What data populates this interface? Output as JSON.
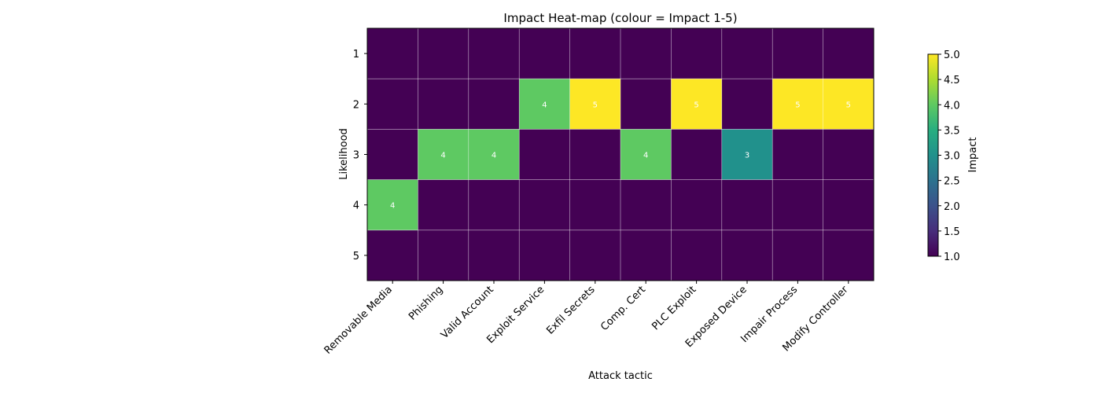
{
  "chart_data": {
    "type": "heatmap",
    "title": "Impact Heat-map (colour = Impact 1-5)",
    "xlabel": "Attack tactic",
    "ylabel": "Likelihood",
    "x_categories": [
      "Removable Media",
      "Phishing",
      "Valid Account",
      "Exploit Service",
      "Exfil Secrets",
      "Comp. Cert",
      "PLC Exploit",
      "Exposed Device",
      "Impair Process",
      "Modify Controller"
    ],
    "y_categories": [
      "1",
      "2",
      "3",
      "4",
      "5"
    ],
    "values": [
      [
        1,
        1,
        1,
        1,
        1,
        1,
        1,
        1,
        1,
        1
      ],
      [
        1,
        1,
        1,
        4,
        5,
        1,
        5,
        1,
        5,
        5
      ],
      [
        1,
        4,
        4,
        1,
        1,
        4,
        1,
        3,
        1,
        1
      ],
      [
        4,
        1,
        1,
        1,
        1,
        1,
        1,
        1,
        1,
        1
      ],
      [
        1,
        1,
        1,
        1,
        1,
        1,
        1,
        1,
        1,
        1
      ]
    ],
    "annotations": [
      {
        "row": 1,
        "col": 3,
        "text": "4"
      },
      {
        "row": 1,
        "col": 4,
        "text": "5"
      },
      {
        "row": 1,
        "col": 6,
        "text": "5"
      },
      {
        "row": 1,
        "col": 8,
        "text": "5"
      },
      {
        "row": 1,
        "col": 9,
        "text": "5"
      },
      {
        "row": 2,
        "col": 1,
        "text": "4"
      },
      {
        "row": 2,
        "col": 2,
        "text": "4"
      },
      {
        "row": 2,
        "col": 5,
        "text": "4"
      },
      {
        "row": 2,
        "col": 7,
        "text": "3"
      },
      {
        "row": 3,
        "col": 0,
        "text": "4"
      }
    ],
    "colorbar": {
      "label": "Impact",
      "range": [
        1,
        5
      ],
      "ticks": [
        "1.0",
        "1.5",
        "2.0",
        "2.5",
        "3.0",
        "3.5",
        "4.0",
        "4.5",
        "5.0"
      ],
      "colormap": "viridis"
    },
    "colors": {
      "1": "#440154",
      "3": "#21918c",
      "4": "#5ec962",
      "5": "#fde725"
    },
    "grid": true
  }
}
